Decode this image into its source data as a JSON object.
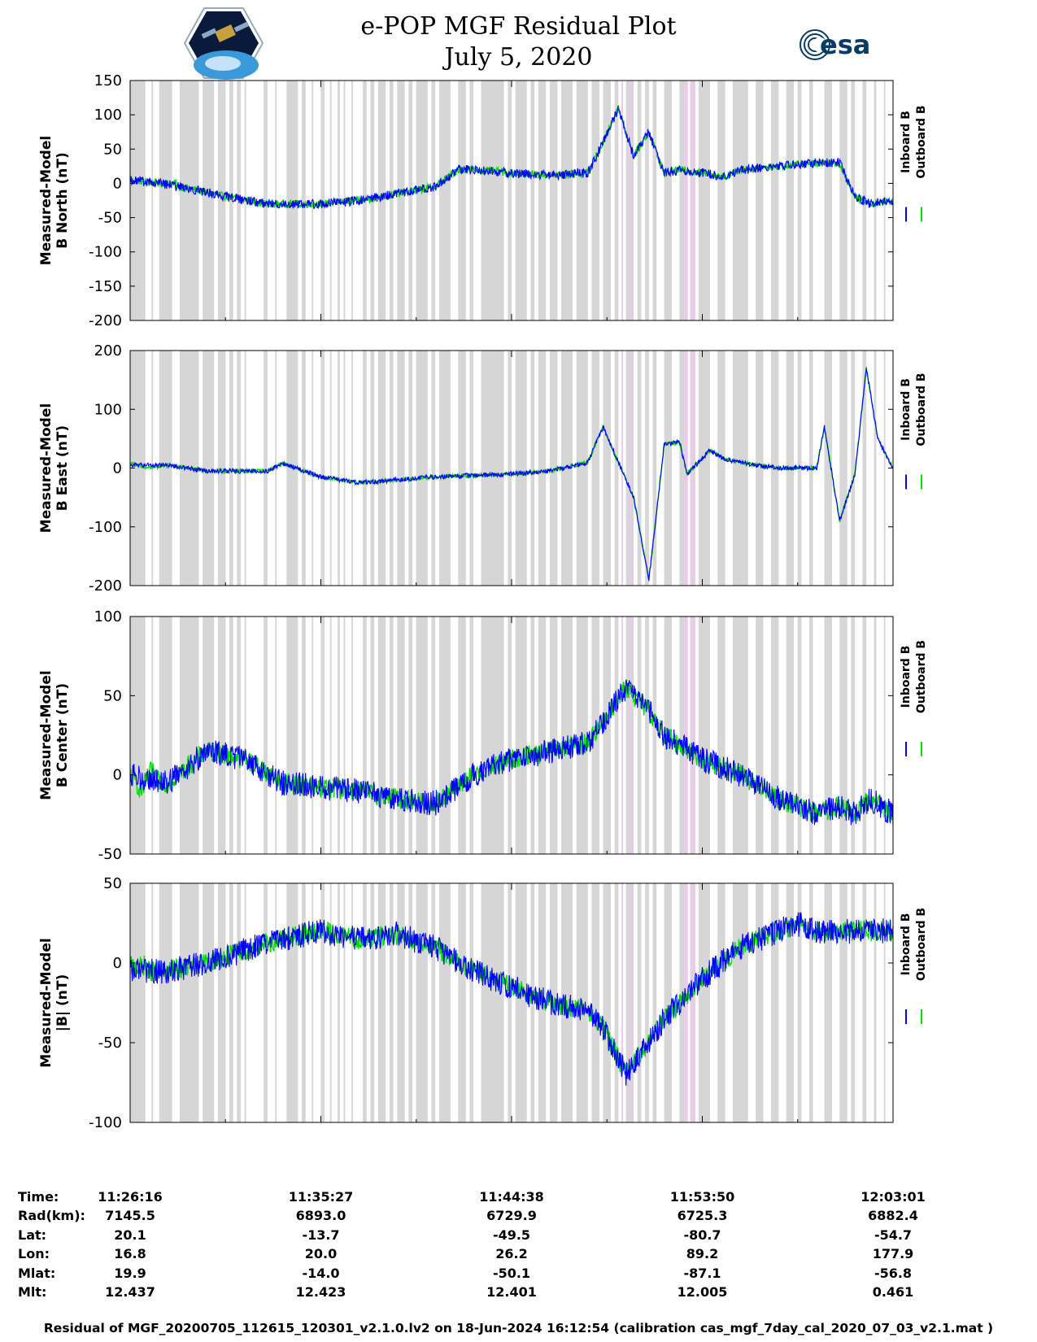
{
  "header": {
    "title_line1": "e-POP MGF Residual Plot",
    "title_line2": "July 5, 2020",
    "logo_left": "cassiope-mission-logo",
    "logo_right_text": "esa"
  },
  "colors": {
    "inboard": "#0000ff",
    "outboard": "#00dd00",
    "shade": "#d6d6d6",
    "pink": "#f0c8f0"
  },
  "legend": {
    "inboard": "Inboard B",
    "outboard": "Outboard B"
  },
  "chart_data": [
    {
      "type": "line",
      "ylabel_line1": "Measured-Model",
      "ylabel_line2": "B North (nT)",
      "ylim": [
        -200,
        150
      ],
      "yticks": [
        150,
        100,
        50,
        0,
        -50,
        -100,
        -150,
        -200
      ],
      "yticklabels": [
        "150",
        "100",
        "50",
        "0",
        "-50",
        "-100",
        "-150",
        "-200"
      ],
      "noise": 7,
      "series": [
        {
          "name": "Inboard B",
          "x": [
            0,
            0.04,
            0.08,
            0.12,
            0.18,
            0.25,
            0.3,
            0.35,
            0.4,
            0.43,
            0.45,
            0.5,
            0.55,
            0.6,
            0.62,
            0.64,
            0.66,
            0.68,
            0.7,
            0.72,
            0.75,
            0.78,
            0.8,
            0.85,
            0.9,
            0.93,
            0.95,
            0.97,
            1.0
          ],
          "values": [
            5,
            0,
            -8,
            -18,
            -30,
            -30,
            -25,
            -15,
            -5,
            20,
            20,
            15,
            12,
            15,
            60,
            110,
            40,
            75,
            15,
            20,
            15,
            10,
            20,
            25,
            30,
            30,
            -20,
            -30,
            -25
          ]
        },
        {
          "name": "Outboard B",
          "x": [
            0,
            0.02,
            0.04,
            0.06
          ],
          "values": [
            5,
            2,
            0,
            0
          ]
        }
      ]
    },
    {
      "type": "line",
      "ylabel_line1": "Measured-Model",
      "ylabel_line2": "B East (nT)",
      "ylim": [
        -200,
        200
      ],
      "yticks": [
        200,
        100,
        0,
        -100,
        -200
      ],
      "yticklabels": [
        "200",
        "100",
        "0",
        "-100",
        "-200"
      ],
      "noise": 4,
      "series": [
        {
          "name": "Inboard B",
          "x": [
            0,
            0.05,
            0.1,
            0.18,
            0.2,
            0.25,
            0.3,
            0.4,
            0.5,
            0.55,
            0.6,
            0.62,
            0.64,
            0.66,
            0.68,
            0.7,
            0.72,
            0.73,
            0.76,
            0.78,
            0.82,
            0.85,
            0.9,
            0.91,
            0.93,
            0.95,
            0.965,
            0.98,
            1.0
          ],
          "values": [
            5,
            5,
            -5,
            -5,
            8,
            -15,
            -25,
            -15,
            -10,
            -5,
            10,
            70,
            10,
            -50,
            -190,
            40,
            45,
            -10,
            30,
            15,
            5,
            0,
            0,
            70,
            -90,
            -10,
            170,
            50,
            0
          ]
        },
        {
          "name": "Outboard B",
          "x": [
            0,
            0.02,
            0.04
          ],
          "values": [
            8,
            0,
            3
          ]
        }
      ]
    },
    {
      "type": "line",
      "ylabel_line1": "Measured-Model",
      "ylabel_line2": "B Center (nT)",
      "ylim": [
        -50,
        100
      ],
      "yticks": [
        100,
        50,
        0,
        -50
      ],
      "yticklabels": [
        "100",
        "50",
        "0",
        "-50"
      ],
      "noise": 8,
      "series": [
        {
          "name": "Inboard B",
          "x": [
            0,
            0.05,
            0.1,
            0.15,
            0.2,
            0.25,
            0.3,
            0.35,
            0.4,
            0.45,
            0.5,
            0.55,
            0.6,
            0.65,
            0.68,
            0.7,
            0.75,
            0.8,
            0.85,
            0.9,
            0.93,
            0.95,
            0.97,
            1.0
          ],
          "values": [
            0,
            -5,
            15,
            10,
            -5,
            -8,
            -10,
            -15,
            -18,
            0,
            10,
            15,
            20,
            55,
            40,
            25,
            10,
            0,
            -15,
            -25,
            -20,
            -25,
            -15,
            -25
          ]
        },
        {
          "name": "Outboard B",
          "x": [
            0,
            0.015,
            0.03
          ],
          "values": [
            0,
            -10,
            5
          ]
        }
      ]
    },
    {
      "type": "line",
      "ylabel_line1": "Measured-Model",
      "ylabel_line2": "|B| (nT)",
      "ylim": [
        -100,
        50
      ],
      "yticks": [
        50,
        0,
        -50,
        -100
      ],
      "yticklabels": [
        "50",
        "0",
        "-50",
        "-100"
      ],
      "noise": 8,
      "series": [
        {
          "name": "Inboard B",
          "x": [
            0,
            0.05,
            0.1,
            0.15,
            0.2,
            0.25,
            0.3,
            0.35,
            0.4,
            0.45,
            0.5,
            0.55,
            0.6,
            0.62,
            0.65,
            0.7,
            0.75,
            0.8,
            0.85,
            0.88,
            0.9,
            0.95,
            1.0
          ],
          "values": [
            -5,
            -5,
            0,
            8,
            15,
            20,
            15,
            18,
            10,
            -5,
            -15,
            -25,
            -30,
            -40,
            -70,
            -35,
            -10,
            10,
            20,
            25,
            20,
            20,
            20
          ]
        },
        {
          "name": "Outboard B",
          "x": [
            0,
            0.01,
            0.02
          ],
          "values": [
            -2,
            -3,
            -1
          ]
        }
      ]
    }
  ],
  "shading": {
    "gray_segments": [
      [
        0.0,
        0.02
      ],
      [
        0.028,
        0.03
      ],
      [
        0.038,
        0.055
      ],
      [
        0.065,
        0.09
      ],
      [
        0.095,
        0.11
      ],
      [
        0.115,
        0.125
      ],
      [
        0.13,
        0.135
      ],
      [
        0.14,
        0.145
      ],
      [
        0.15,
        0.152
      ],
      [
        0.175,
        0.18
      ],
      [
        0.19,
        0.192
      ],
      [
        0.205,
        0.22
      ],
      [
        0.225,
        0.23
      ],
      [
        0.238,
        0.24
      ],
      [
        0.25,
        0.255
      ],
      [
        0.262,
        0.264
      ],
      [
        0.272,
        0.275
      ],
      [
        0.28,
        0.282
      ],
      [
        0.29,
        0.292
      ],
      [
        0.305,
        0.31
      ],
      [
        0.315,
        0.32
      ],
      [
        0.325,
        0.335
      ],
      [
        0.34,
        0.345
      ],
      [
        0.35,
        0.36
      ],
      [
        0.365,
        0.37
      ],
      [
        0.375,
        0.39
      ],
      [
        0.395,
        0.4
      ],
      [
        0.405,
        0.42
      ],
      [
        0.43,
        0.44
      ],
      [
        0.445,
        0.45
      ],
      [
        0.46,
        0.49
      ],
      [
        0.495,
        0.5
      ],
      [
        0.505,
        0.52
      ],
      [
        0.525,
        0.53
      ],
      [
        0.535,
        0.545
      ],
      [
        0.55,
        0.56
      ],
      [
        0.565,
        0.58
      ],
      [
        0.585,
        0.6
      ],
      [
        0.605,
        0.615
      ],
      [
        0.62,
        0.63
      ],
      [
        0.635,
        0.64
      ],
      [
        0.65,
        0.66
      ],
      [
        0.665,
        0.67
      ],
      [
        0.675,
        0.68
      ],
      [
        0.685,
        0.69
      ],
      [
        0.7,
        0.71
      ],
      [
        0.72,
        0.73
      ],
      [
        0.735,
        0.74
      ],
      [
        0.745,
        0.76
      ],
      [
        0.77,
        0.78
      ],
      [
        0.79,
        0.81
      ],
      [
        0.82,
        0.83
      ],
      [
        0.84,
        0.85
      ],
      [
        0.86,
        0.87
      ],
      [
        0.875,
        0.88
      ],
      [
        0.89,
        0.895
      ],
      [
        0.91,
        0.92
      ],
      [
        0.93,
        0.94
      ],
      [
        0.945,
        0.95
      ],
      [
        0.96,
        0.965
      ],
      [
        0.975,
        0.978
      ],
      [
        0.988,
        0.99
      ]
    ],
    "pink_lines": [
      0.645,
      0.655,
      0.727,
      0.73,
      0.735,
      0.74
    ]
  },
  "xaxis": {
    "tick_fracs": [
      0,
      0.25,
      0.5,
      0.75,
      1.0
    ],
    "minor_fracs": [
      0.125,
      0.375,
      0.625,
      0.875
    ]
  },
  "info_table": {
    "rows": [
      {
        "label": "Time:",
        "values": [
          "11:26:16",
          "11:35:27",
          "11:44:38",
          "11:53:50",
          "12:03:01"
        ]
      },
      {
        "label": "Rad(km):",
        "values": [
          "7145.5",
          "6893.0",
          "6729.9",
          "6725.3",
          "6882.4"
        ]
      },
      {
        "label": "Lat:",
        "values": [
          "20.1",
          "-13.7",
          "-49.5",
          "-80.7",
          "-54.7"
        ]
      },
      {
        "label": "Lon:",
        "values": [
          "16.8",
          "20.0",
          "26.2",
          "89.2",
          "177.9"
        ]
      },
      {
        "label": "Mlat:",
        "values": [
          "19.9",
          "-14.0",
          "-50.1",
          "-87.1",
          "-56.8"
        ]
      },
      {
        "label": "Mlt:",
        "values": [
          "12.437",
          "12.423",
          "12.401",
          "12.005",
          "0.461"
        ]
      }
    ]
  },
  "footer": "Residual of MGF_20200705_112615_120301_v2.1.0.lv2 on 18-Jun-2024 16:12:54 (calibration cas_mgf_7day_cal_2020_07_03_v2.1.mat )"
}
